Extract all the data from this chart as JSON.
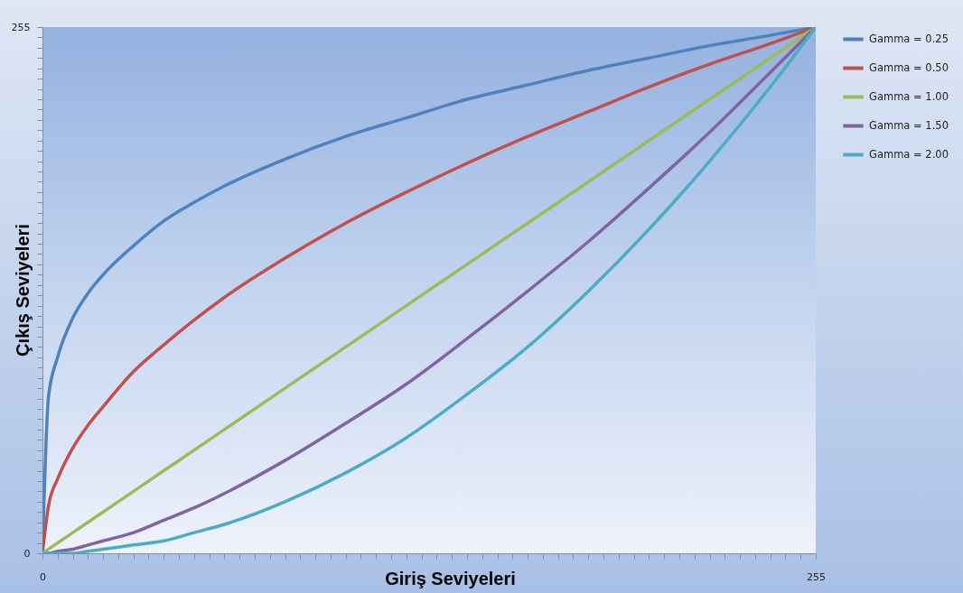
{
  "chart_data": {
    "type": "line",
    "xlabel": "Giriş Seviyeleri",
    "ylabel": "Çıkış Seviyeleri",
    "x": [
      0,
      2,
      5,
      10,
      15,
      20,
      30,
      40,
      50,
      60,
      80,
      100,
      120,
      140,
      160,
      180,
      200,
      220,
      240,
      255
    ],
    "series": [
      {
        "name": "Gamma = 0.25",
        "color": "#4f81bd",
        "values": [
          0,
          76,
          95,
          114,
          126,
          135,
          149,
          161,
          170,
          178,
          191,
          202,
          211,
          220,
          227,
          234,
          240,
          246,
          251,
          255
        ]
      },
      {
        "name": "Gamma = 0.50",
        "color": "#c0504d",
        "values": [
          0,
          23,
          36,
          51,
          62,
          71,
          88,
          101,
          113,
          124,
          143,
          160,
          175,
          189,
          202,
          214,
          226,
          237,
          247,
          255
        ]
      },
      {
        "name": "Gamma = 1.00",
        "color": "#9bbb59",
        "values": [
          0,
          2,
          5,
          10,
          15,
          20,
          30,
          40,
          50,
          60,
          80,
          100,
          120,
          140,
          160,
          180,
          200,
          220,
          240,
          255
        ]
      },
      {
        "name": "Gamma = 1.50",
        "color": "#8064a2",
        "values": [
          0,
          0,
          1,
          2,
          4,
          6,
          10,
          16,
          22,
          29,
          45,
          63,
          82,
          104,
          127,
          151,
          177,
          204,
          233,
          255
        ]
      },
      {
        "name": "Gamma = 2.00",
        "color": "#4bacc6",
        "values": [
          0,
          0,
          0,
          0,
          1,
          2,
          4,
          6,
          10,
          14,
          25,
          39,
          56,
          77,
          100,
          127,
          157,
          190,
          226,
          255
        ]
      }
    ],
    "xlim": [
      0,
      255
    ],
    "ylim": [
      0,
      255
    ],
    "xticks": [
      0,
      {
        "value": 5,
        "label": null
      },
      {
        "value": 10,
        "label": null
      },
      {
        "value": 15,
        "label": null
      },
      {
        "value": 20,
        "label": null
      },
      {
        "value": 25,
        "label": null
      },
      {
        "value": 30,
        "label": null
      },
      {
        "value": 35,
        "label": null
      },
      {
        "value": 40,
        "label": null
      },
      {
        "value": 45,
        "label": null
      },
      {
        "value": 50,
        "label": null
      },
      {
        "value": 55,
        "label": null
      },
      {
        "value": 60,
        "label": null
      },
      {
        "value": 65,
        "label": null
      },
      {
        "value": 70,
        "label": null
      },
      {
        "value": 75,
        "label": null
      },
      {
        "value": 80,
        "label": null
      },
      {
        "value": 85,
        "label": null
      },
      {
        "value": 90,
        "label": null
      },
      {
        "value": 95,
        "label": null
      },
      {
        "value": 100,
        "label": null
      },
      {
        "value": 105,
        "label": null
      },
      {
        "value": 110,
        "label": null
      },
      {
        "value": 115,
        "label": null
      },
      {
        "value": 120,
        "label": null
      },
      {
        "value": 125,
        "label": null
      },
      {
        "value": 130,
        "label": null
      },
      {
        "value": 135,
        "label": null
      },
      {
        "value": 140,
        "label": null
      },
      {
        "value": 145,
        "label": null
      },
      {
        "value": 150,
        "label": null
      },
      {
        "value": 155,
        "label": null
      },
      {
        "value": 160,
        "label": null
      },
      {
        "value": 165,
        "label": null
      },
      {
        "value": 170,
        "label": null
      },
      {
        "value": 175,
        "label": null
      },
      {
        "value": 180,
        "label": null
      },
      {
        "value": 185,
        "label": null
      },
      {
        "value": 190,
        "label": null
      },
      {
        "value": 195,
        "label": null
      },
      {
        "value": 200,
        "label": null
      },
      {
        "value": 205,
        "label": null
      },
      {
        "value": 210,
        "label": null
      },
      {
        "value": 215,
        "label": null
      },
      {
        "value": 220,
        "label": null
      },
      {
        "value": 225,
        "label": null
      },
      {
        "value": 230,
        "label": null
      },
      {
        "value": 235,
        "label": null
      },
      {
        "value": 240,
        "label": null
      },
      {
        "value": 245,
        "label": null
      },
      {
        "value": 250,
        "label": null
      },
      255
    ],
    "yticks": [
      0,
      {
        "value": 5,
        "label": null
      },
      {
        "value": 10,
        "label": null
      },
      {
        "value": 15,
        "label": null
      },
      {
        "value": 20,
        "label": null
      },
      {
        "value": 25,
        "label": null
      },
      {
        "value": 30,
        "label": null
      },
      {
        "value": 35,
        "label": null
      },
      {
        "value": 40,
        "label": null
      },
      {
        "value": 45,
        "label": null
      },
      {
        "value": 50,
        "label": null
      },
      {
        "value": 55,
        "label": null
      },
      {
        "value": 60,
        "label": null
      },
      {
        "value": 65,
        "label": null
      },
      {
        "value": 70,
        "label": null
      },
      {
        "value": 75,
        "label": null
      },
      {
        "value": 80,
        "label": null
      },
      {
        "value": 85,
        "label": null
      },
      {
        "value": 90,
        "label": null
      },
      {
        "value": 95,
        "label": null
      },
      {
        "value": 100,
        "label": null
      },
      {
        "value": 105,
        "label": null
      },
      {
        "value": 110,
        "label": null
      },
      {
        "value": 115,
        "label": null
      },
      {
        "value": 120,
        "label": null
      },
      {
        "value": 125,
        "label": null
      },
      {
        "value": 130,
        "label": null
      },
      {
        "value": 135,
        "label": null
      },
      {
        "value": 140,
        "label": null
      },
      {
        "value": 145,
        "label": null
      },
      {
        "value": 150,
        "label": null
      },
      {
        "value": 155,
        "label": null
      },
      {
        "value": 160,
        "label": null
      },
      {
        "value": 165,
        "label": null
      },
      {
        "value": 170,
        "label": null
      },
      {
        "value": 175,
        "label": null
      },
      {
        "value": 180,
        "label": null
      },
      {
        "value": 185,
        "label": null
      },
      {
        "value": 190,
        "label": null
      },
      {
        "value": 195,
        "label": null
      },
      {
        "value": 200,
        "label": null
      },
      {
        "value": 205,
        "label": null
      },
      {
        "value": 210,
        "label": null
      },
      {
        "value": 215,
        "label": null
      },
      {
        "value": 220,
        "label": null
      },
      {
        "value": 225,
        "label": null
      },
      {
        "value": 230,
        "label": null
      },
      {
        "value": 235,
        "label": null
      },
      {
        "value": 240,
        "label": null
      },
      {
        "value": 245,
        "label": null
      },
      {
        "value": 250,
        "label": null
      },
      255
    ],
    "grid": false,
    "legend": "right",
    "marker": "none",
    "line_style": "solid"
  }
}
